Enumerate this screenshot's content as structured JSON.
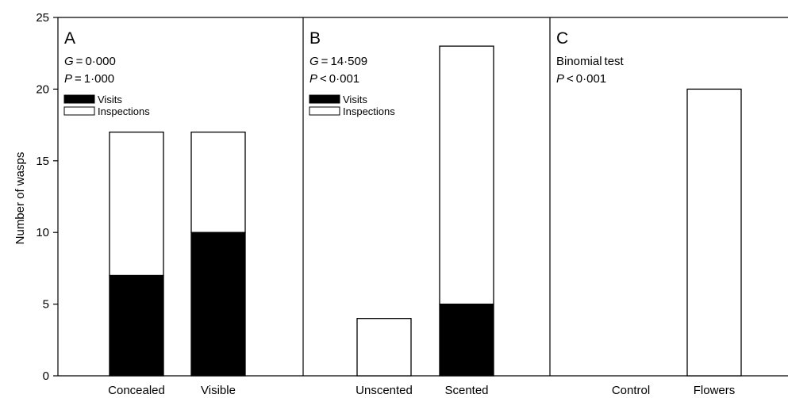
{
  "chart_data": {
    "type": "bar",
    "stacked": true,
    "ylabel": "Number of wasps",
    "ylim": [
      0,
      25
    ],
    "yticks": [
      0,
      5,
      10,
      15,
      20,
      25
    ],
    "colors": {
      "visits": "#000000",
      "inspections": "#ffffff",
      "stroke": "#000000"
    },
    "panels": [
      {
        "letter": "A",
        "stat_lines": [
          {
            "italic": "G",
            "rest": " = 0·000"
          },
          {
            "italic": "P",
            "rest": " = 1·000"
          }
        ],
        "legend": [
          {
            "name": "Visits",
            "fill": "visits"
          },
          {
            "name": "Inspections",
            "fill": "inspections"
          }
        ],
        "categories": [
          "Concealed",
          "Visible"
        ],
        "series": [
          {
            "name": "Visits",
            "values": [
              7,
              10
            ]
          },
          {
            "name": "Inspections",
            "values": [
              10,
              7
            ]
          }
        ]
      },
      {
        "letter": "B",
        "stat_lines": [
          {
            "italic": "G",
            "rest": " = 14·509"
          },
          {
            "italic": "P",
            "rest": " < 0·001"
          }
        ],
        "legend": [
          {
            "name": "Visits",
            "fill": "visits"
          },
          {
            "name": "Inspections",
            "fill": "inspections"
          }
        ],
        "categories": [
          "Unscented",
          "Scented"
        ],
        "series": [
          {
            "name": "Visits",
            "values": [
              0,
              5
            ]
          },
          {
            "name": "Inspections",
            "values": [
              4,
              18
            ]
          }
        ]
      },
      {
        "letter": "C",
        "stat_lines": [
          {
            "italic": "",
            "rest": "Binomial test"
          },
          {
            "italic": "P",
            "rest": " < 0·001"
          }
        ],
        "legend": [],
        "categories": [
          "Control",
          "Flowers"
        ],
        "series": [
          {
            "name": "Visits",
            "values": [
              0,
              0
            ]
          },
          {
            "name": "Inspections",
            "values": [
              0,
              20
            ]
          }
        ]
      }
    ]
  }
}
